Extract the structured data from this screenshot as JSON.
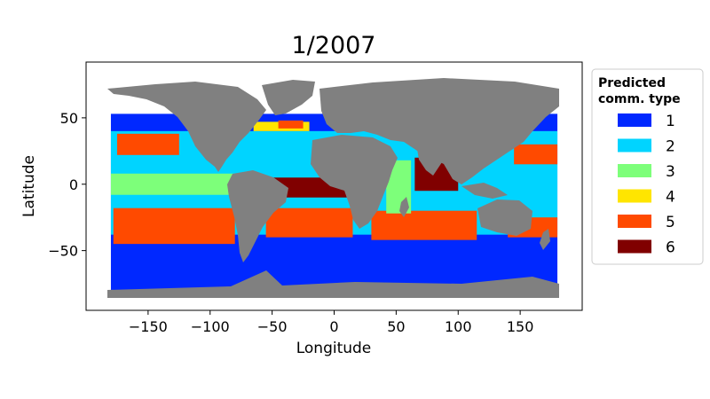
{
  "chart_data": {
    "type": "map",
    "title": "1/2007",
    "xlabel": "Longitude",
    "ylabel": "Latitude",
    "xlim": [
      -200,
      200
    ],
    "ylim": [
      -95,
      92
    ],
    "xticks": [
      -150,
      -100,
      -50,
      0,
      50,
      100,
      150
    ],
    "yticks": [
      50,
      0,
      -50
    ],
    "xtick_labels": [
      "−150",
      "−100",
      "−50",
      "0",
      "50",
      "100",
      "150"
    ],
    "ytick_labels": [
      "50",
      "0",
      "−50"
    ],
    "land_color": "#808080",
    "legend": {
      "placement": "right",
      "title_line1": "Predicted",
      "title_line2": "comm. type",
      "entries": [
        {
          "label": "1",
          "color": "#0028ff"
        },
        {
          "label": "2",
          "color": "#00d4ff"
        },
        {
          "label": "3",
          "color": "#7dff7a"
        },
        {
          "label": "4",
          "color": "#ffe500"
        },
        {
          "label": "5",
          "color": "#ff4a00"
        },
        {
          "label": "6",
          "color": "#800000"
        }
      ]
    },
    "regions": [
      {
        "type": "1",
        "lon": [
          -180,
          180
        ],
        "lat": [
          -80,
          53
        ]
      },
      {
        "type": "2",
        "lon": [
          -180,
          180
        ],
        "lat": [
          -38,
          40
        ]
      },
      {
        "type": "5",
        "lon": [
          -175,
          -125
        ],
        "lat": [
          22,
          38
        ]
      },
      {
        "type": "5",
        "lon": [
          -178,
          -80
        ],
        "lat": [
          -45,
          -18
        ]
      },
      {
        "type": "3",
        "lon": [
          -180,
          -80
        ],
        "lat": [
          -8,
          8
        ]
      },
      {
        "type": "5",
        "lon": [
          -55,
          15
        ],
        "lat": [
          -40,
          -18
        ]
      },
      {
        "type": "5",
        "lon": [
          30,
          115
        ],
        "lat": [
          -42,
          -20
        ]
      },
      {
        "type": "5",
        "lon": [
          140,
          180
        ],
        "lat": [
          -40,
          -25
        ]
      },
      {
        "type": "5",
        "lon": [
          145,
          180
        ],
        "lat": [
          15,
          30
        ]
      },
      {
        "type": "3",
        "lon": [
          42,
          62
        ],
        "lat": [
          -22,
          18
        ]
      },
      {
        "type": "6",
        "lon": [
          65,
          100
        ],
        "lat": [
          -5,
          20
        ]
      },
      {
        "type": "6",
        "lon": [
          -70,
          20
        ],
        "lat": [
          -10,
          5
        ]
      },
      {
        "type": "4",
        "lon": [
          -65,
          -20
        ],
        "lat": [
          40,
          47
        ]
      },
      {
        "type": "5",
        "lon": [
          -45,
          -25
        ],
        "lat": [
          42,
          48
        ]
      }
    ]
  }
}
